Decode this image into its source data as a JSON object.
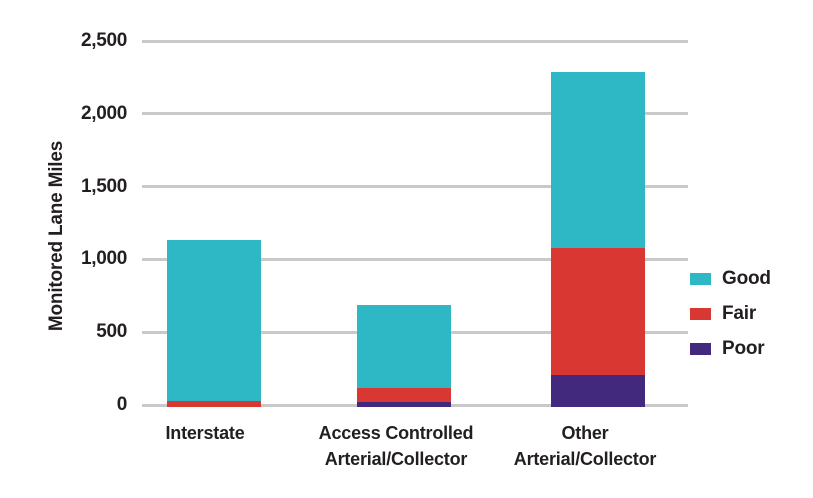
{
  "chart_data": {
    "type": "bar",
    "stacked": true,
    "ylabel": "Monitored Lane Miles",
    "xlabel": "",
    "ylim": [
      0,
      2500
    ],
    "grid": true,
    "legend_position": "right",
    "legend_order": [
      "Good",
      "Fair",
      "Poor"
    ],
    "yticks": [
      {
        "value": 0,
        "label": "0"
      },
      {
        "value": 500,
        "label": "500"
      },
      {
        "value": 1000,
        "label": "1,000"
      },
      {
        "value": 1500,
        "label": "1,500"
      },
      {
        "value": 2000,
        "label": "2,000"
      },
      {
        "value": 2500,
        "label": "2,500"
      }
    ],
    "categories": [
      "Interstate",
      "Access Controlled\nArterial/Collector",
      "Other\nArterial/Collector"
    ],
    "series_stack_order": "bottom-to-top",
    "series": [
      {
        "name": "Poor",
        "color": "#43297e",
        "values": [
          0,
          30,
          215
        ]
      },
      {
        "name": "Fair",
        "color": "#d93832",
        "values": [
          35,
          100,
          875
        ]
      },
      {
        "name": "Good",
        "color": "#2eb8c6",
        "values": [
          1110,
          570,
          1210
        ]
      }
    ]
  },
  "colors": {
    "background": "#ffffff",
    "gridline": "#c9c9ca",
    "text": "#231f20"
  }
}
